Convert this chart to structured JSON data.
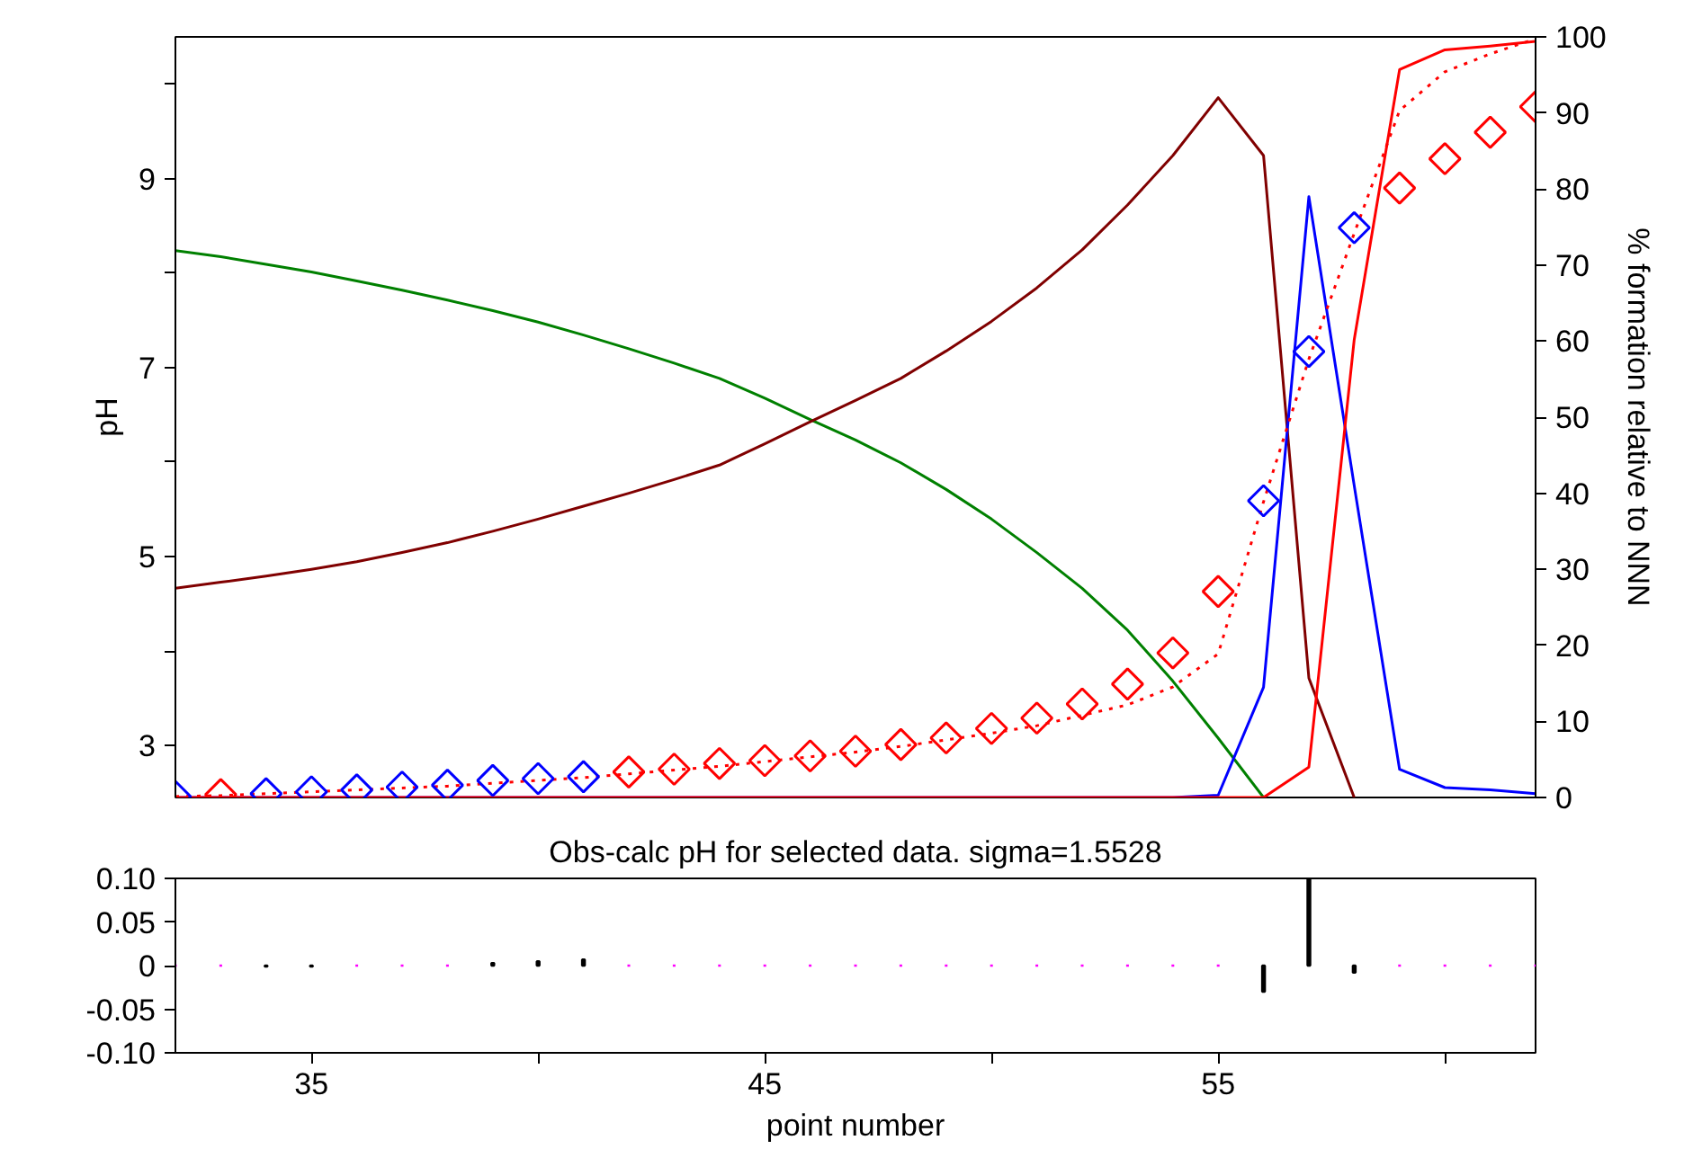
{
  "chart_data": [
    {
      "type": "line",
      "ylabel": "pH",
      "y2label": "% formation relative to NNN",
      "x": [
        32,
        33,
        34,
        35,
        36,
        37,
        38,
        39,
        40,
        41,
        42,
        43,
        44,
        45,
        46,
        47,
        48,
        49,
        50,
        51,
        52,
        53,
        54,
        55,
        56,
        57,
        58,
        59,
        60,
        61,
        62
      ],
      "xlim": [
        32,
        62
      ],
      "ylim": [
        2.45,
        10.5
      ],
      "yticks": [
        3,
        {
          "value": 4,
          "label": null
        },
        5,
        {
          "value": 6,
          "label": null
        },
        7,
        {
          "value": 8,
          "label": null
        },
        9,
        {
          "value": 10,
          "label": null
        }
      ],
      "y2lim": [
        0,
        100
      ],
      "y2ticks": [
        0,
        10,
        20,
        30,
        40,
        50,
        60,
        70,
        80,
        90,
        100
      ],
      "tick_labels": "y",
      "grid": false,
      "series": [
        {
          "color": "#008000",
          "axis": "y2",
          "values": [
            71.9,
            71.1,
            70.1,
            69.1,
            67.9,
            66.7,
            65.4,
            64.0,
            62.5,
            60.8,
            59.0,
            57.1,
            55.1,
            52.5,
            49.7,
            47.0,
            44.0,
            40.5,
            36.6,
            32.2,
            27.5,
            22.0,
            15.3,
            7.8,
            0,
            null,
            null,
            null,
            null,
            null,
            null
          ]
        },
        {
          "color": "#800000",
          "axis": "y2",
          "values": [
            27.5,
            28.3,
            29.1,
            30.0,
            31.0,
            32.2,
            33.5,
            35.0,
            36.6,
            38.3,
            40.0,
            41.8,
            43.7,
            46.5,
            49.4,
            52.2,
            55.1,
            58.7,
            62.6,
            67.0,
            72.0,
            77.9,
            84.4,
            92.0,
            84.4,
            15.7,
            0,
            null,
            null,
            null,
            null
          ]
        },
        {
          "color": "#0000ff",
          "axis": "y2",
          "values": [
            0,
            0,
            0,
            0,
            0,
            0,
            0,
            0,
            0,
            0,
            0,
            0,
            0,
            0,
            0,
            0,
            0,
            0,
            0,
            0,
            0,
            0,
            0,
            0.3,
            14.5,
            79.0,
            41.0,
            3.7,
            1.3,
            1.0,
            0.5
          ]
        },
        {
          "color": "#ff0000",
          "axis": "y2",
          "values": [
            0,
            0,
            0,
            0,
            0,
            0,
            0,
            0,
            0,
            0,
            0,
            0,
            0,
            0,
            0,
            0,
            0,
            0,
            0,
            0,
            0,
            0,
            0,
            0,
            0,
            4.0,
            60.2,
            95.7,
            98.3,
            98.8,
            99.4
          ]
        },
        {
          "color": "#ff0000",
          "line_style": "dotted",
          "values": [
            2.46,
            2.47,
            2.49,
            2.51,
            2.53,
            2.55,
            2.57,
            2.6,
            2.63,
            2.66,
            2.7,
            2.74,
            2.78,
            2.83,
            2.88,
            2.93,
            2.99,
            3.06,
            3.13,
            3.21,
            3.32,
            3.43,
            3.62,
            3.97,
            5.58,
            7.09,
            8.42,
            9.72,
            10.13,
            10.32,
            10.48
          ]
        },
        {
          "type": "scatter",
          "marker": "diamond",
          "color": "#0000ff",
          "x": [
            32,
            34,
            35,
            36,
            37,
            38,
            39,
            40,
            41,
            56,
            57,
            58
          ],
          "values": [
            2.46,
            2.49,
            2.51,
            2.53,
            2.56,
            2.58,
            2.63,
            2.65,
            2.67,
            5.59,
            7.17,
            8.48
          ]
        },
        {
          "type": "scatter",
          "marker": "diamond",
          "color": "#ff0000",
          "x": [
            33,
            42,
            43,
            44,
            45,
            46,
            47,
            48,
            49,
            50,
            51,
            52,
            53,
            54,
            55,
            59,
            60,
            61,
            62
          ],
          "values": [
            2.48,
            2.72,
            2.75,
            2.81,
            2.84,
            2.89,
            2.94,
            3.01,
            3.08,
            3.18,
            3.29,
            3.44,
            3.65,
            3.98,
            4.63,
            8.9,
            9.21,
            9.49,
            9.76
          ]
        }
      ]
    },
    {
      "type": "bar",
      "title": "Obs-calc pH for selected data. sigma=1.5528",
      "xlabel": "point number",
      "x": [
        32,
        33,
        34,
        35,
        36,
        37,
        38,
        39,
        40,
        41,
        42,
        43,
        44,
        45,
        46,
        47,
        48,
        49,
        50,
        51,
        52,
        53,
        54,
        55,
        56,
        57,
        58,
        59,
        60,
        61,
        62
      ],
      "values": [
        0,
        0,
        -0.001,
        -0.001,
        0,
        0,
        0,
        0.003,
        0.005,
        0.007,
        0,
        0,
        0,
        0,
        0,
        0,
        0,
        0,
        0,
        0,
        0,
        0,
        0,
        0,
        -0.03,
        0.1,
        -0.008,
        0,
        0,
        0,
        0
      ],
      "colors": [
        "#ff00ff",
        "#ff00ff",
        "#000000",
        "#000000",
        "#ff00ff",
        "#ff00ff",
        "#ff00ff",
        "#000000",
        "#000000",
        "#000000",
        "#ff00ff",
        "#ff00ff",
        "#ff00ff",
        "#ff00ff",
        "#ff00ff",
        "#ff00ff",
        "#ff00ff",
        "#ff00ff",
        "#ff00ff",
        "#ff00ff",
        "#ff00ff",
        "#ff00ff",
        "#ff00ff",
        "#ff00ff",
        "#000000",
        "#000000",
        "#000000",
        "#ff00ff",
        "#ff00ff",
        "#ff00ff",
        "#ff00ff"
      ],
      "xlim": [
        32,
        62
      ],
      "xticks": [
        35,
        {
          "value": 40,
          "label": null
        },
        45,
        {
          "value": 50,
          "label": null
        },
        55,
        {
          "value": 60,
          "label": null
        }
      ],
      "ylim": [
        -0.1,
        0.1
      ],
      "yticks": [
        {
          "value": 0.1,
          "label": "0.10"
        },
        0.05,
        0,
        -0.05,
        {
          "value": -0.1,
          "label": "-0.10"
        }
      ],
      "grid": false
    }
  ]
}
